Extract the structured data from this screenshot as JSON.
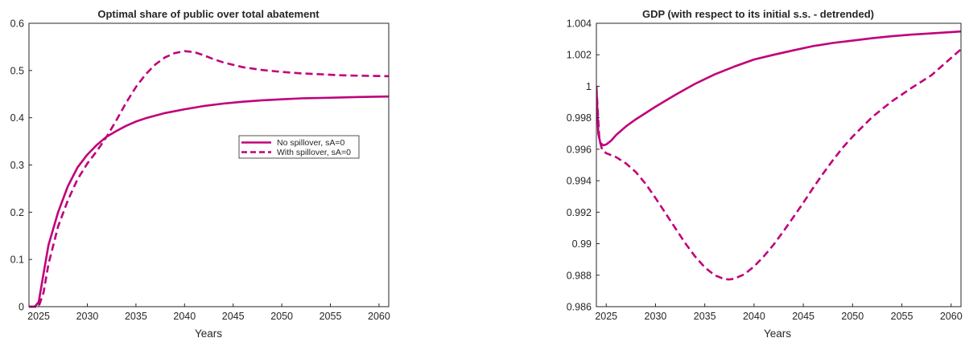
{
  "chart_data": [
    {
      "type": "line",
      "title": "Optimal share of public over total abatement",
      "xlabel": "Years",
      "ylabel": "",
      "xlim": [
        2024,
        2061
      ],
      "ylim": [
        0,
        0.6
      ],
      "xticks": [
        2025,
        2030,
        2035,
        2040,
        2045,
        2050,
        2055,
        2060
      ],
      "yticks": [
        0,
        0.1,
        0.2,
        0.3,
        0.4,
        0.5,
        0.6
      ],
      "ytick_labels": [
        "0",
        "0.1",
        "0.2",
        "0.3",
        "0.4",
        "0.5",
        "0.6"
      ],
      "grid": false,
      "legend_position": "middle-right",
      "color": "#c0007a",
      "series": [
        {
          "name": "No spillover, sA=0",
          "style": "solid",
          "x": [
            2024,
            2024.6,
            2025,
            2025.5,
            2026,
            2027,
            2028,
            2029,
            2030,
            2031,
            2032,
            2033,
            2034,
            2035,
            2036,
            2038,
            2040,
            2042,
            2044,
            2046,
            2048,
            2050,
            2052,
            2054,
            2056,
            2058,
            2061
          ],
          "values": [
            0,
            0,
            0.01,
            0.07,
            0.13,
            0.2,
            0.255,
            0.295,
            0.322,
            0.343,
            0.36,
            0.372,
            0.383,
            0.392,
            0.399,
            0.41,
            0.418,
            0.425,
            0.43,
            0.434,
            0.437,
            0.439,
            0.441,
            0.442,
            0.443,
            0.444,
            0.445
          ]
        },
        {
          "name": "With spillover, sA=0",
          "style": "dashed",
          "x": [
            2024,
            2025,
            2025.5,
            2026,
            2027,
            2028,
            2029,
            2030,
            2031,
            2032,
            2033,
            2034,
            2035,
            2036,
            2037,
            2038,
            2039,
            2040,
            2041,
            2042,
            2043,
            2044,
            2046,
            2048,
            2050,
            2052,
            2054,
            2056,
            2058,
            2061
          ],
          "values": [
            0,
            0,
            0.03,
            0.09,
            0.17,
            0.225,
            0.27,
            0.303,
            0.33,
            0.36,
            0.395,
            0.432,
            0.465,
            0.492,
            0.513,
            0.528,
            0.537,
            0.541,
            0.539,
            0.532,
            0.524,
            0.517,
            0.507,
            0.501,
            0.497,
            0.494,
            0.492,
            0.49,
            0.489,
            0.488
          ]
        }
      ]
    },
    {
      "type": "line",
      "title": "GDP (with respect to its initial s.s. - detrended)",
      "xlabel": "Years",
      "ylabel": "",
      "xlim": [
        2024,
        2061
      ],
      "ylim": [
        0.986,
        1.004
      ],
      "xticks": [
        2025,
        2030,
        2035,
        2040,
        2045,
        2050,
        2055,
        2060
      ],
      "yticks": [
        0.986,
        0.988,
        0.99,
        0.992,
        0.994,
        0.996,
        0.998,
        1,
        1.002,
        1.004
      ],
      "ytick_labels": [
        "0.986",
        "0.988",
        "0.99",
        "0.992",
        "0.994",
        "0.996",
        "0.998",
        "1",
        "1.002",
        "1.004"
      ],
      "grid": false,
      "color": "#c0007a",
      "series": [
        {
          "style": "solid",
          "x": [
            2024,
            2024.2,
            2024.4,
            2024.7,
            2025,
            2025.5,
            2026,
            2027,
            2028,
            2030,
            2032,
            2034,
            2036,
            2038,
            2040,
            2042,
            2044,
            2046,
            2048,
            2050,
            2052,
            2054,
            2056,
            2058,
            2061
          ],
          "values": [
            1.0,
            0.997,
            0.9964,
            0.99625,
            0.9963,
            0.99655,
            0.9969,
            0.99745,
            0.9979,
            0.9987,
            0.99945,
            1.00015,
            1.00075,
            1.00125,
            1.0017,
            1.002,
            1.00228,
            1.00255,
            1.00275,
            1.0029,
            1.00305,
            1.00318,
            1.00328,
            1.00336,
            1.00348
          ]
        },
        {
          "style": "dashed",
          "x": [
            2024,
            2024.3,
            2024.6,
            2025,
            2026,
            2027,
            2028,
            2029,
            2030,
            2031,
            2032,
            2033,
            2034,
            2035,
            2036,
            2037,
            2037.5,
            2038,
            2039,
            2040,
            2041,
            2042,
            2043,
            2044,
            2045,
            2046,
            2047,
            2048,
            2049,
            2050,
            2052,
            2054,
            2056,
            2058,
            2060,
            2061
          ],
          "values": [
            1.0,
            0.9966,
            0.99595,
            0.99575,
            0.9955,
            0.9951,
            0.99455,
            0.9938,
            0.9929,
            0.99195,
            0.991,
            0.99005,
            0.9892,
            0.9885,
            0.988,
            0.98775,
            0.98773,
            0.98778,
            0.98805,
            0.98855,
            0.9892,
            0.98995,
            0.9908,
            0.9917,
            0.9926,
            0.99355,
            0.99445,
            0.9953,
            0.9961,
            0.9968,
            0.99805,
            0.99905,
            0.9999,
            1.0007,
            1.0018,
            1.00235
          ]
        }
      ]
    }
  ]
}
